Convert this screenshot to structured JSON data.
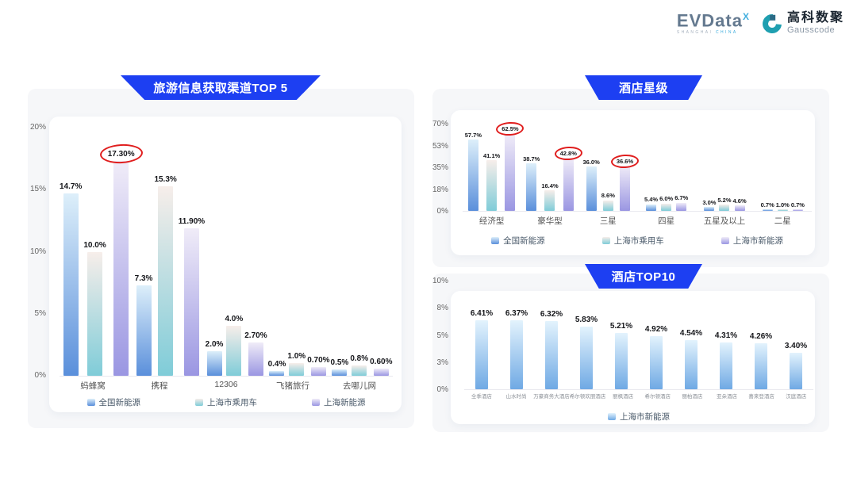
{
  "brand": {
    "evdata_word": "EVData",
    "evdata_sup": "X",
    "evdata_sub_left": "SHANGHAI ",
    "evdata_sub_right": "CHINA",
    "gausscode_cn": "高科数聚",
    "gausscode_en": "Gausscode"
  },
  "colors": {
    "banner_blue": "#1d3ff2",
    "circle_red": "#e01e1e",
    "panel_gray": "#f6f7f9"
  },
  "chart_data": [
    {
      "id": "c1",
      "type": "bar",
      "title": "旅游信息获取渠道TOP 5",
      "ylim": [
        0,
        20
      ],
      "ymax": 20,
      "y_ticks": [
        "20%",
        "15%",
        "10%",
        "5%",
        "0%"
      ],
      "grid": false,
      "legend_position": "bottom",
      "categories": [
        "蚂蜂窝",
        "携程",
        "12306",
        "飞猪旅行",
        "去哪儿网"
      ],
      "series": [
        {
          "name": "全国新能源",
          "values": [
            14.7,
            7.3,
            2.0,
            0.4,
            0.5
          ],
          "labels": [
            "14.7%",
            "7.3%",
            "2.0%",
            "0.4%",
            "0.5%"
          ],
          "circled": [
            false,
            false,
            false,
            false,
            false
          ],
          "color_top": "#ddeffa",
          "color_bottom": "#5a8fdb"
        },
        {
          "name": "上海市乘用车",
          "values": [
            10.0,
            15.3,
            4.0,
            1.0,
            0.8
          ],
          "labels": [
            "10.0%",
            "15.3%",
            "4.0%",
            "1.0%",
            "0.8%"
          ],
          "circled": [
            false,
            false,
            false,
            false,
            false
          ],
          "color_top": "#f7eeea",
          "color_bottom": "#7fccd8"
        },
        {
          "name": "上海新能源",
          "values": [
            17.3,
            11.9,
            2.7,
            0.7,
            0.6
          ],
          "labels": [
            "17.30%",
            "11.90%",
            "2.70%",
            "0.70%",
            "0.60%"
          ],
          "circled": [
            true,
            false,
            false,
            false,
            false
          ],
          "color_top": "#f0ecf8",
          "color_bottom": "#9a96e2"
        }
      ]
    },
    {
      "id": "c2",
      "type": "bar",
      "title": "酒店星级",
      "ylim": [
        0,
        70
      ],
      "ymax": 70,
      "y_ticks": [
        "70%",
        "53%",
        "35%",
        "18%",
        "0%"
      ],
      "grid": false,
      "legend_position": "bottom",
      "categories": [
        "经济型",
        "豪华型",
        "三星",
        "四星",
        "五星及以上",
        "二星"
      ],
      "series": [
        {
          "name": "全国新能源",
          "values": [
            57.7,
            38.7,
            36.0,
            5.4,
            3.0,
            0.7
          ],
          "labels": [
            "57.7%",
            "38.7%",
            "36.0%",
            "5.4%",
            "3.0%",
            "0.7%"
          ],
          "circled": [
            false,
            false,
            false,
            false,
            false,
            false
          ],
          "color_top": "#ddeffa",
          "color_bottom": "#5a8fdb"
        },
        {
          "name": "上海市乘用车",
          "values": [
            41.1,
            16.4,
            8.6,
            6.0,
            5.2,
            1.0
          ],
          "labels": [
            "41.1%",
            "16.4%",
            "8.6%",
            "6.0%",
            "5.2%",
            "1.0%"
          ],
          "circled": [
            false,
            false,
            false,
            false,
            false,
            false
          ],
          "color_top": "#f7eeea",
          "color_bottom": "#7fccd8"
        },
        {
          "name": "上海市新能源",
          "values": [
            62.5,
            42.8,
            36.6,
            6.7,
            4.6,
            0.7
          ],
          "labels": [
            "62.5%",
            "42.8%",
            "36.6%",
            "6.7%",
            "4.6%",
            "0.7%"
          ],
          "circled": [
            true,
            true,
            true,
            false,
            false,
            false
          ],
          "color_top": "#f0ecf8",
          "color_bottom": "#9a96e2"
        }
      ]
    },
    {
      "id": "c3",
      "type": "bar",
      "title": "酒店TOP10",
      "ylim": [
        0,
        10
      ],
      "ymax": 10,
      "y_ticks": [
        "10%",
        "8%",
        "5%",
        "3%",
        "0%"
      ],
      "grid": false,
      "legend_position": "bottom",
      "categories": [
        "全季酒店",
        "山水时尚",
        "万豪商务大酒店",
        "希尔顿欢朋酒店",
        "丽枫酒店",
        "希尔顿酒店",
        "丽柏酒店",
        "亚朵酒店",
        "喜来登酒店",
        "汉庭酒店"
      ],
      "series": [
        {
          "name": "上海市新能源",
          "values": [
            6.41,
            6.37,
            6.32,
            5.83,
            5.21,
            4.92,
            4.54,
            4.31,
            4.26,
            3.4
          ],
          "labels": [
            "6.41%",
            "6.37%",
            "6.32%",
            "5.83%",
            "5.21%",
            "4.92%",
            "4.54%",
            "4.31%",
            "4.26%",
            "3.40%"
          ],
          "circled": [
            false,
            false,
            false,
            false,
            false,
            false,
            false,
            false,
            false,
            false
          ],
          "color_top": "#e3f3fd",
          "color_bottom": "#6fa9e4"
        }
      ]
    }
  ]
}
